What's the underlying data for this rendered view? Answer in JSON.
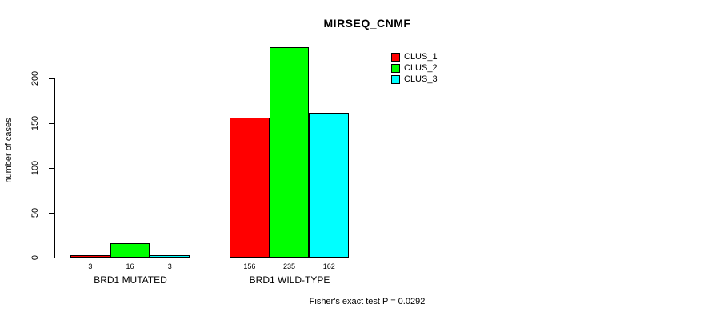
{
  "chart_data": {
    "type": "bar",
    "title": "MIRSEQ_CNMF",
    "xlabel": "",
    "ylabel": "number of cases",
    "categories": [
      "BRD1 MUTATED",
      "BRD1 WILD-TYPE"
    ],
    "series": [
      {
        "name": "CLUS_1",
        "color": "#ff0000",
        "values": [
          3,
          156
        ]
      },
      {
        "name": "CLUS_2",
        "color": "#00ff00",
        "values": [
          16,
          235
        ]
      },
      {
        "name": "CLUS_3",
        "color": "#00ffff",
        "values": [
          3,
          162
        ]
      }
    ],
    "yticks": [
      0,
      50,
      100,
      150,
      200
    ],
    "ylim": [
      0,
      240
    ],
    "bar_value_labels": [
      [
        "3",
        "16",
        "3"
      ],
      [
        "156",
        "235",
        "162"
      ]
    ],
    "legend_position": "top-right",
    "grid": false,
    "bar_border_color": "#000000",
    "annotation": "Fisher's exact test P = 0.0292"
  }
}
